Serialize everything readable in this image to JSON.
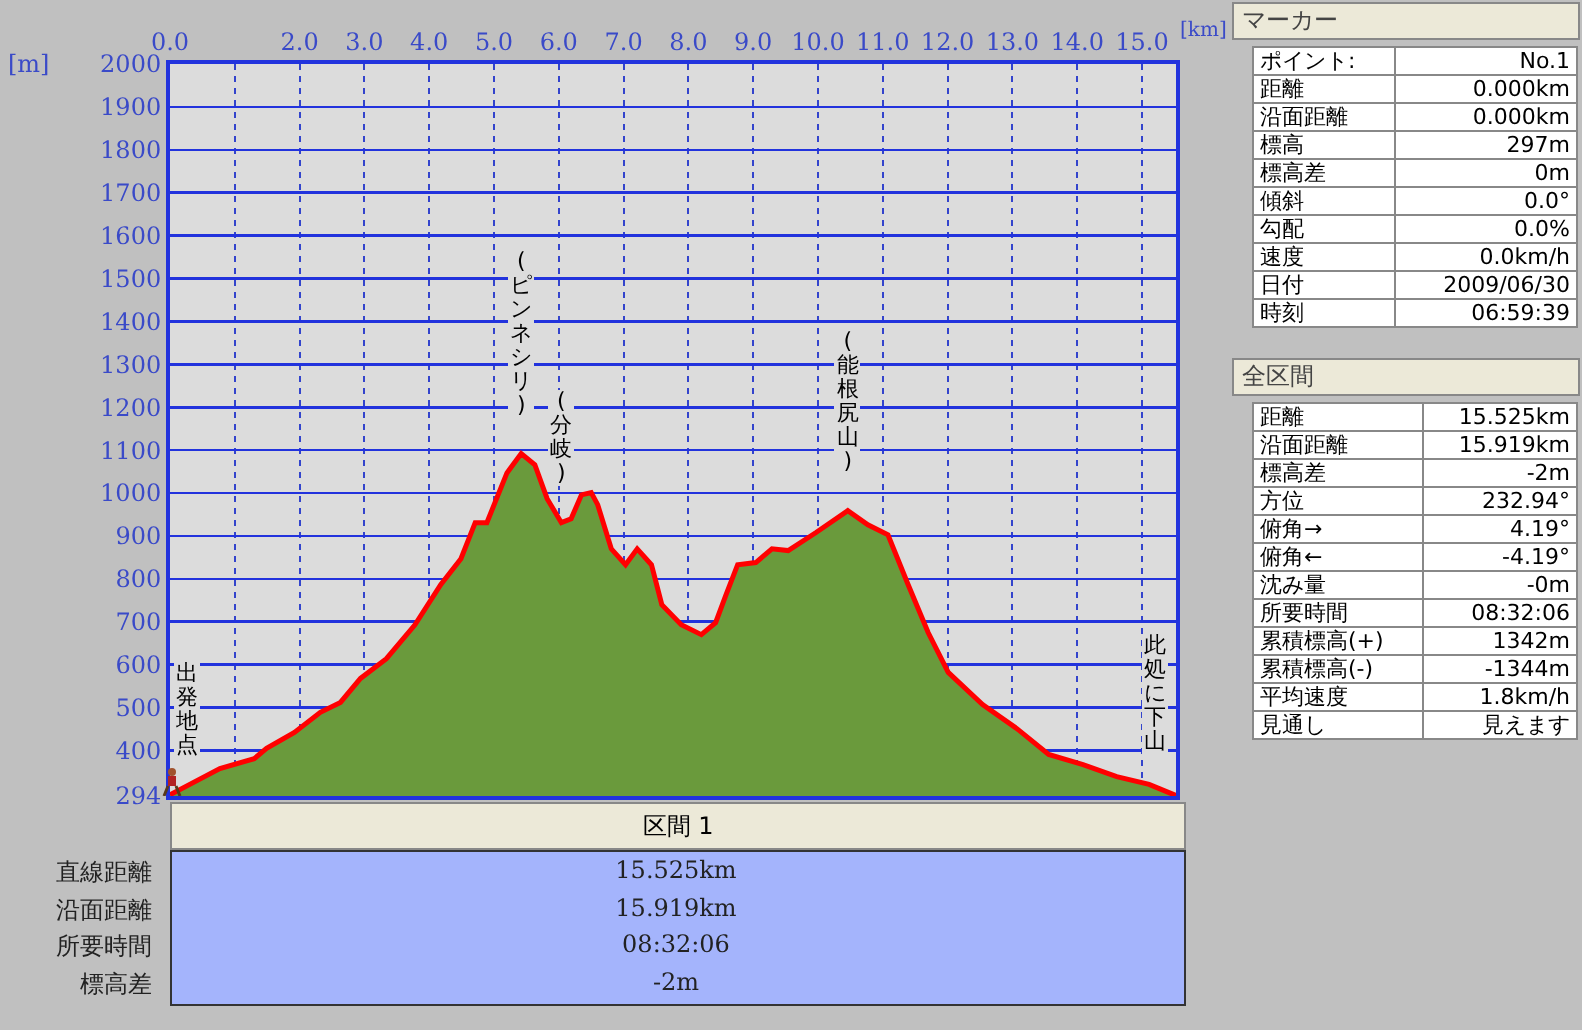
{
  "chart_data": [
    {
      "type": "area",
      "xlabel": "[km]",
      "ylabel": "[m]",
      "series": [
        {
          "color": "#6a9a3c",
          "x": [
            0,
            0.77,
            1.3,
            1.49,
            1.92,
            2.32,
            2.63,
            2.94,
            3.34,
            3.78,
            4.18,
            4.49,
            4.71,
            4.89,
            5.2,
            5.42,
            5.63,
            5.82,
            6.04,
            6.19,
            6.35,
            6.5,
            6.6,
            6.81,
            7.03,
            7.21,
            7.43,
            7.59,
            7.89,
            8.2,
            8.42,
            8.58,
            8.76,
            9.04,
            9.29,
            9.54,
            9.97,
            10.46,
            10.77,
            11.08,
            11.39,
            11.7,
            12.01,
            12.54,
            13.07,
            13.56,
            14.09,
            14.61,
            15.11,
            15.525
          ],
          "values": [
            297,
            358,
            381,
            405,
            442,
            489,
            512,
            568,
            614,
            693,
            787,
            847,
            931,
            931,
            1047,
            1092,
            1066,
            987,
            931,
            940,
            996,
            1001,
            973,
            870,
            833,
            870,
            833,
            740,
            693,
            670,
            698,
            763,
            833,
            838,
            870,
            866,
            908,
            959,
            926,
            903,
            787,
            675,
            582,
            507,
            451,
            391,
            367,
            339,
            321,
            295
          ]
        },
        {
          "type": "line",
          "color": "#ff0000",
          "x": [
            0,
            0.77,
            1.3,
            1.49,
            1.92,
            2.32,
            2.63,
            2.94,
            3.34,
            3.78,
            4.18,
            4.49,
            4.71,
            4.89,
            5.2,
            5.42,
            5.63,
            5.82,
            6.04,
            6.19,
            6.35,
            6.5,
            6.6,
            6.81,
            7.03,
            7.21,
            7.43,
            7.59,
            7.89,
            8.2,
            8.42,
            8.58,
            8.76,
            9.04,
            9.29,
            9.54,
            9.97,
            10.46,
            10.77,
            11.08,
            11.39,
            11.7,
            12.01,
            12.54,
            13.07,
            13.56,
            14.09,
            14.61,
            15.11,
            15.525
          ],
          "values": [
            297,
            358,
            381,
            405,
            442,
            489,
            512,
            568,
            614,
            693,
            787,
            847,
            931,
            931,
            1047,
            1092,
            1066,
            987,
            931,
            940,
            996,
            1001,
            973,
            870,
            833,
            870,
            833,
            740,
            693,
            670,
            698,
            763,
            833,
            838,
            870,
            866,
            908,
            959,
            926,
            903,
            787,
            675,
            582,
            507,
            451,
            391,
            367,
            339,
            321,
            295
          ]
        }
      ],
      "xlim": [
        0,
        15.525
      ],
      "xticks": [
        {
          "value": 0,
          "label": "0.0"
        },
        {
          "value": 1,
          "label": null
        },
        {
          "value": 2,
          "label": "2.0"
        },
        {
          "value": 3,
          "label": "3.0"
        },
        {
          "value": 4,
          "label": "4.0"
        },
        {
          "value": 5,
          "label": "5.0"
        },
        {
          "value": 6,
          "label": "6.0"
        },
        {
          "value": 7,
          "label": "7.0"
        },
        {
          "value": 8,
          "label": "8.0"
        },
        {
          "value": 9,
          "label": "9.0"
        },
        {
          "value": 10,
          "label": "10.0"
        },
        {
          "value": 11,
          "label": "11.0"
        },
        {
          "value": 12,
          "label": "12.0"
        },
        {
          "value": 13,
          "label": "13.0"
        },
        {
          "value": 14,
          "label": "14.0"
        },
        {
          "value": 15,
          "label": "15.0"
        }
      ],
      "ylim": [
        294,
        2000
      ],
      "yticks": [
        294,
        400,
        500,
        600,
        700,
        800,
        900,
        1000,
        1100,
        1200,
        1300,
        1400,
        1500,
        1600,
        1700,
        1800,
        1900,
        2000
      ],
      "grid": true,
      "legend": false,
      "annotations": [
        {
          "text": "出発地点",
          "x": 0,
          "y": 297
        },
        {
          "text": "(ピンネシリ)",
          "x": 5.42,
          "y": 1092
        },
        {
          "text": "(分岐)",
          "x": 6.04,
          "y": 931
        },
        {
          "text": "(能根尻山)",
          "x": 10.46,
          "y": 959
        },
        {
          "text": "此処に下山",
          "x": 15.2,
          "y": 310
        }
      ]
    },
    {
      "type": "other",
      "title": "マーカー",
      "annotations": [
        "ポイント:",
        "No.1",
        "距離",
        "0.000km",
        "沿面距離",
        "0.000km",
        "標高",
        "297m",
        "標高差",
        "0m",
        "傾斜",
        "0.0°",
        "勾配",
        "0.0%",
        "速度",
        "0.0km/h",
        "日付",
        "2009/06/30",
        "時刻",
        "06:59:39"
      ]
    },
    {
      "type": "other",
      "title": "全区間",
      "annotations": [
        "距離",
        "15.525km",
        "沿面距離",
        "15.919km",
        "標高差",
        "-2m",
        "方位",
        "232.94°",
        "俯角→",
        "4.19°",
        "俯角←",
        "-4.19°",
        "沈み量",
        "-0m",
        "所要時間",
        "08:32:06",
        "累積標高(+)",
        "1342m",
        "累積標高(-)",
        "-1344m",
        "平均速度",
        "1.8km/h",
        "見通し",
        "見えます"
      ]
    },
    {
      "type": "other",
      "title": "区間 1",
      "annotations": [
        "直線距離",
        "15.525km",
        "沿面距離",
        "15.919km",
        "所要時間",
        "08:32:06",
        "標高差",
        "-2m"
      ]
    }
  ]
}
